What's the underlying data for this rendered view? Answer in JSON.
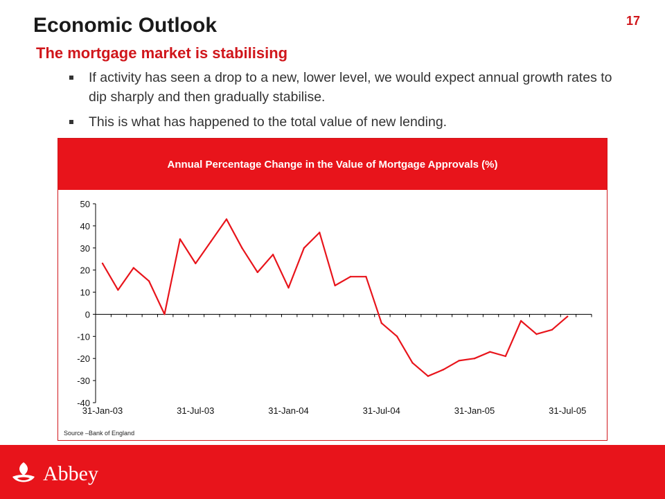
{
  "page_number": "17",
  "title": "Economic Outlook",
  "subtitle": "The mortgage market is stabilising",
  "bullets": [
    "If activity has seen a drop to a new, lower level, we would expect annual growth rates to dip sharply and then gradually stabilise.",
    "This is what has happened to the total value of new lending."
  ],
  "chart_data": {
    "type": "line",
    "title": "Annual Percentage Change in the Value of Mortgage Approvals (%)",
    "xlabel": "",
    "ylabel": "",
    "ylim": [
      -40,
      50
    ],
    "yticks": [
      50,
      40,
      30,
      20,
      10,
      0,
      -10,
      -20,
      -30,
      -40
    ],
    "xtick_labels": [
      "31-Jan-03",
      "31-Jul-03",
      "31-Jan-04",
      "31-Jul-04",
      "31-Jan-05",
      "31-Jul-05"
    ],
    "x": [
      "Jan-03",
      "Feb-03",
      "Mar-03",
      "Apr-03",
      "May-03",
      "Jun-03",
      "Jul-03",
      "Aug-03",
      "Sep-03",
      "Oct-03",
      "Nov-03",
      "Dec-03",
      "Jan-04",
      "Feb-04",
      "Mar-04",
      "Apr-04",
      "May-04",
      "Jun-04",
      "Jul-04",
      "Aug-04",
      "Sep-04",
      "Oct-04",
      "Nov-04",
      "Dec-04",
      "Jan-05",
      "Feb-05",
      "Mar-05",
      "Apr-05",
      "May-05",
      "Jun-05",
      "Jul-05",
      "Aug-05"
    ],
    "series": [
      {
        "values": [
          23,
          11,
          21,
          15,
          0,
          34,
          23,
          33,
          43,
          30,
          19,
          27,
          12,
          30,
          37,
          13,
          17,
          17,
          -4,
          -10,
          -22,
          -28,
          -25,
          -21,
          -20,
          -17,
          -19,
          -3,
          -9,
          -7,
          -1,
          null
        ]
      }
    ],
    "grid": false,
    "line_color": "#e8141b"
  },
  "source": "Source –Bank of England",
  "logo": {
    "text": "Abbey",
    "color": "#ffffff"
  },
  "colors": {
    "brand_red": "#e8141b"
  }
}
